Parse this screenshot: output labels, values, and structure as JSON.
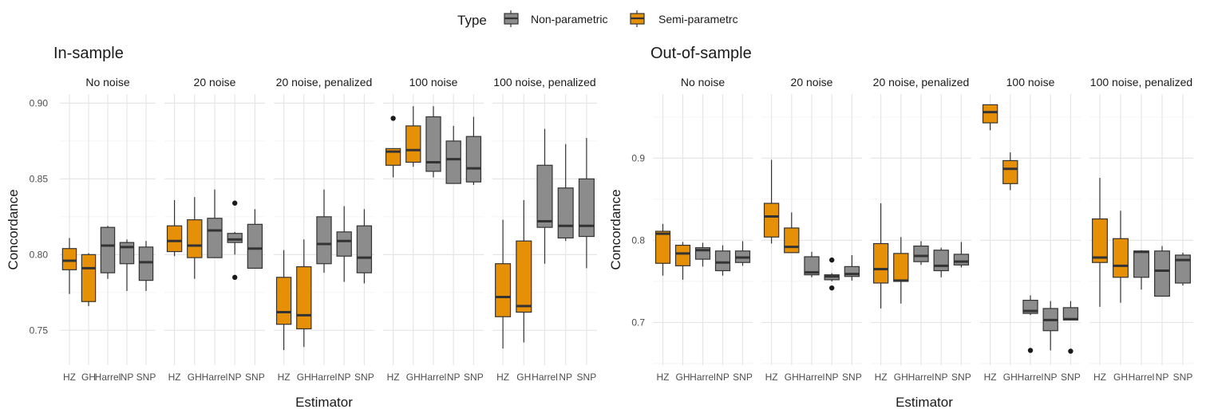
{
  "legend": {
    "title": "Type",
    "items": [
      {
        "label": "Non-parametric",
        "color": "#8c8c8c"
      },
      {
        "label": "Semi-parametrc",
        "color": "#e69008"
      }
    ]
  },
  "chart_data": [
    {
      "type": "box",
      "title": "In-sample",
      "xlabel": "Estimator",
      "ylabel": "Concordance",
      "ylim": [
        0.727,
        0.906
      ],
      "yticks": [
        0.75,
        0.8,
        0.85,
        0.9
      ],
      "ytick_labels": [
        "0.75",
        "0.80",
        "0.85",
        "0.90"
      ],
      "categories": [
        "HZ",
        "GH",
        "Harrel",
        "NP",
        "SNP"
      ],
      "category_type": [
        "Semi-parametrc",
        "Semi-parametrc",
        "Non-parametric",
        "Non-parametric",
        "Non-parametric"
      ],
      "grid": true,
      "legend_position": "top",
      "facets": [
        {
          "label": "No noise",
          "boxes": [
            {
              "category": "HZ",
              "min": 0.774,
              "q1": 0.79,
              "median": 0.796,
              "q3": 0.804,
              "max": 0.811,
              "outliers": []
            },
            {
              "category": "GH",
              "min": 0.766,
              "q1": 0.769,
              "median": 0.791,
              "q3": 0.8,
              "max": 0.801,
              "outliers": []
            },
            {
              "category": "Harrel",
              "min": 0.784,
              "q1": 0.788,
              "median": 0.806,
              "q3": 0.818,
              "max": 0.819,
              "outliers": []
            },
            {
              "category": "NP",
              "min": 0.776,
              "q1": 0.794,
              "median": 0.805,
              "q3": 0.808,
              "max": 0.81,
              "outliers": []
            },
            {
              "category": "SNP",
              "min": 0.776,
              "q1": 0.783,
              "median": 0.795,
              "q3": 0.805,
              "max": 0.809,
              "outliers": []
            }
          ]
        },
        {
          "label": "20 noise",
          "boxes": [
            {
              "category": "HZ",
              "min": 0.799,
              "q1": 0.802,
              "median": 0.809,
              "q3": 0.819,
              "max": 0.836,
              "outliers": []
            },
            {
              "category": "GH",
              "min": 0.784,
              "q1": 0.798,
              "median": 0.806,
              "q3": 0.823,
              "max": 0.838,
              "outliers": []
            },
            {
              "category": "Harrel",
              "min": 0.798,
              "q1": 0.798,
              "median": 0.816,
              "q3": 0.824,
              "max": 0.843,
              "outliers": []
            },
            {
              "category": "NP",
              "min": 0.8,
              "q1": 0.808,
              "median": 0.81,
              "q3": 0.814,
              "max": 0.815,
              "outliers": [
                0.834,
                0.785
              ]
            },
            {
              "category": "SNP",
              "min": 0.791,
              "q1": 0.791,
              "median": 0.804,
              "q3": 0.82,
              "max": 0.83,
              "outliers": []
            }
          ]
        },
        {
          "label": "20 noise, penalized",
          "boxes": [
            {
              "category": "HZ",
              "min": 0.737,
              "q1": 0.754,
              "median": 0.762,
              "q3": 0.785,
              "max": 0.803,
              "outliers": []
            },
            {
              "category": "GH",
              "min": 0.739,
              "q1": 0.751,
              "median": 0.76,
              "q3": 0.792,
              "max": 0.81,
              "outliers": []
            },
            {
              "category": "Harrel",
              "min": 0.788,
              "q1": 0.794,
              "median": 0.807,
              "q3": 0.825,
              "max": 0.843,
              "outliers": []
            },
            {
              "category": "NP",
              "min": 0.782,
              "q1": 0.799,
              "median": 0.809,
              "q3": 0.815,
              "max": 0.832,
              "outliers": []
            },
            {
              "category": "SNP",
              "min": 0.781,
              "q1": 0.788,
              "median": 0.798,
              "q3": 0.819,
              "max": 0.83,
              "outliers": []
            }
          ]
        },
        {
          "label": "100 noise",
          "boxes": [
            {
              "category": "HZ",
              "min": 0.851,
              "q1": 0.859,
              "median": 0.868,
              "q3": 0.87,
              "max": 0.87,
              "outliers": [
                0.89
              ]
            },
            {
              "category": "GH",
              "min": 0.858,
              "q1": 0.861,
              "median": 0.869,
              "q3": 0.885,
              "max": 0.898,
              "outliers": []
            },
            {
              "category": "Harrel",
              "min": 0.851,
              "q1": 0.855,
              "median": 0.861,
              "q3": 0.891,
              "max": 0.898,
              "outliers": []
            },
            {
              "category": "NP",
              "min": 0.847,
              "q1": 0.847,
              "median": 0.863,
              "q3": 0.875,
              "max": 0.885,
              "outliers": []
            },
            {
              "category": "SNP",
              "min": 0.846,
              "q1": 0.848,
              "median": 0.857,
              "q3": 0.878,
              "max": 0.891,
              "outliers": []
            }
          ]
        },
        {
          "label": "100 noise, penalized",
          "boxes": [
            {
              "category": "HZ",
              "min": 0.738,
              "q1": 0.759,
              "median": 0.772,
              "q3": 0.794,
              "max": 0.823,
              "outliers": []
            },
            {
              "category": "GH",
              "min": 0.742,
              "q1": 0.762,
              "median": 0.766,
              "q3": 0.809,
              "max": 0.836,
              "outliers": []
            },
            {
              "category": "Harrel",
              "min": 0.794,
              "q1": 0.818,
              "median": 0.822,
              "q3": 0.859,
              "max": 0.883,
              "outliers": []
            },
            {
              "category": "NP",
              "min": 0.809,
              "q1": 0.811,
              "median": 0.819,
              "q3": 0.844,
              "max": 0.873,
              "outliers": []
            },
            {
              "category": "SNP",
              "min": 0.791,
              "q1": 0.812,
              "median": 0.819,
              "q3": 0.85,
              "max": 0.877,
              "outliers": []
            }
          ]
        }
      ]
    },
    {
      "type": "box",
      "title": "Out-of-sample",
      "xlabel": "Estimator",
      "ylabel": "Concordance",
      "ylim": [
        0.648,
        0.978
      ],
      "yticks": [
        0.7,
        0.8,
        0.9
      ],
      "ytick_labels": [
        "0.7",
        "0.8",
        "0.9"
      ],
      "categories": [
        "HZ",
        "GH",
        "Harrel",
        "NP",
        "SNP"
      ],
      "category_type": [
        "Semi-parametrc",
        "Semi-parametrc",
        "Non-parametric",
        "Non-parametric",
        "Non-parametric"
      ],
      "grid": true,
      "legend_position": "top",
      "facets": [
        {
          "label": "No noise",
          "boxes": [
            {
              "category": "HZ",
              "min": 0.757,
              "q1": 0.772,
              "median": 0.808,
              "q3": 0.811,
              "max": 0.82,
              "outliers": []
            },
            {
              "category": "GH",
              "min": 0.752,
              "q1": 0.769,
              "median": 0.784,
              "q3": 0.794,
              "max": 0.798,
              "outliers": []
            },
            {
              "category": "Harrel",
              "min": 0.768,
              "q1": 0.777,
              "median": 0.788,
              "q3": 0.791,
              "max": 0.797,
              "outliers": []
            },
            {
              "category": "NP",
              "min": 0.757,
              "q1": 0.763,
              "median": 0.773,
              "q3": 0.787,
              "max": 0.794,
              "outliers": []
            },
            {
              "category": "SNP",
              "min": 0.769,
              "q1": 0.773,
              "median": 0.779,
              "q3": 0.787,
              "max": 0.799,
              "outliers": []
            }
          ]
        },
        {
          "label": "20 noise",
          "boxes": [
            {
              "category": "HZ",
              "min": 0.796,
              "q1": 0.804,
              "median": 0.829,
              "q3": 0.845,
              "max": 0.898,
              "outliers": []
            },
            {
              "category": "GH",
              "min": 0.785,
              "q1": 0.785,
              "median": 0.792,
              "q3": 0.815,
              "max": 0.834,
              "outliers": []
            },
            {
              "category": "Harrel",
              "min": 0.755,
              "q1": 0.758,
              "median": 0.761,
              "q3": 0.78,
              "max": 0.786,
              "outliers": []
            },
            {
              "category": "NP",
              "min": 0.75,
              "q1": 0.752,
              "median": 0.756,
              "q3": 0.758,
              "max": 0.76,
              "outliers": [
                0.776,
                0.742
              ]
            },
            {
              "category": "SNP",
              "min": 0.751,
              "q1": 0.756,
              "median": 0.759,
              "q3": 0.768,
              "max": 0.782,
              "outliers": []
            }
          ]
        },
        {
          "label": "20 noise, penalized",
          "boxes": [
            {
              "category": "HZ",
              "min": 0.717,
              "q1": 0.748,
              "median": 0.765,
              "q3": 0.796,
              "max": 0.845,
              "outliers": []
            },
            {
              "category": "GH",
              "min": 0.723,
              "q1": 0.75,
              "median": 0.751,
              "q3": 0.784,
              "max": 0.804,
              "outliers": []
            },
            {
              "category": "Harrel",
              "min": 0.77,
              "q1": 0.774,
              "median": 0.781,
              "q3": 0.793,
              "max": 0.799,
              "outliers": []
            },
            {
              "category": "NP",
              "min": 0.755,
              "q1": 0.763,
              "median": 0.769,
              "q3": 0.788,
              "max": 0.791,
              "outliers": []
            },
            {
              "category": "SNP",
              "min": 0.767,
              "q1": 0.77,
              "median": 0.774,
              "q3": 0.783,
              "max": 0.798,
              "outliers": []
            }
          ]
        },
        {
          "label": "100 noise",
          "boxes": [
            {
              "category": "HZ",
              "min": 0.934,
              "q1": 0.943,
              "median": 0.956,
              "q3": 0.965,
              "max": 0.965,
              "outliers": []
            },
            {
              "category": "GH",
              "min": 0.861,
              "q1": 0.869,
              "median": 0.887,
              "q3": 0.897,
              "max": 0.907,
              "outliers": []
            },
            {
              "category": "Harrel",
              "min": 0.709,
              "q1": 0.711,
              "median": 0.714,
              "q3": 0.727,
              "max": 0.733,
              "outliers": [
                0.666
              ]
            },
            {
              "category": "NP",
              "min": 0.666,
              "q1": 0.69,
              "median": 0.703,
              "q3": 0.717,
              "max": 0.726,
              "outliers": []
            },
            {
              "category": "SNP",
              "min": 0.703,
              "q1": 0.703,
              "median": 0.704,
              "q3": 0.718,
              "max": 0.726,
              "outliers": [
                0.665
              ]
            }
          ]
        },
        {
          "label": "100 noise, penalized",
          "boxes": [
            {
              "category": "HZ",
              "min": 0.719,
              "q1": 0.773,
              "median": 0.779,
              "q3": 0.826,
              "max": 0.876,
              "outliers": []
            },
            {
              "category": "GH",
              "min": 0.724,
              "q1": 0.755,
              "median": 0.769,
              "q3": 0.802,
              "max": 0.836,
              "outliers": []
            },
            {
              "category": "Harrel",
              "min": 0.74,
              "q1": 0.755,
              "median": 0.786,
              "q3": 0.787,
              "max": 0.788,
              "outliers": []
            },
            {
              "category": "NP",
              "min": 0.732,
              "q1": 0.732,
              "median": 0.763,
              "q3": 0.787,
              "max": 0.793,
              "outliers": []
            },
            {
              "category": "SNP",
              "min": 0.745,
              "q1": 0.748,
              "median": 0.776,
              "q3": 0.782,
              "max": 0.785,
              "outliers": []
            }
          ]
        }
      ]
    }
  ]
}
